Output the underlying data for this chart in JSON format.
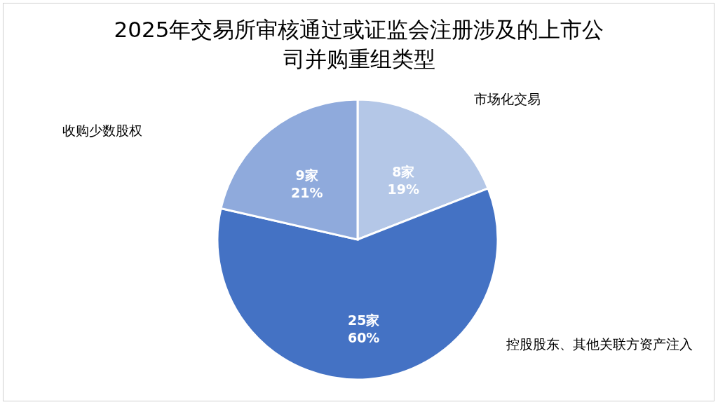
{
  "chart_data": {
    "type": "pie",
    "title": "2025年交易所审核通过或证监会注册涉及的上市公司并购重组类型",
    "categories": [
      "市场化交易",
      "控股股东、其他关联方资产注入",
      "收购少数股权"
    ],
    "values": [
      8,
      25,
      9
    ],
    "colors": [
      "#b4c7e7",
      "#4472c4",
      "#8faadc"
    ],
    "value_labels": [
      "8家\n19%",
      "25家\n60%",
      "9家\n21%"
    ]
  }
}
